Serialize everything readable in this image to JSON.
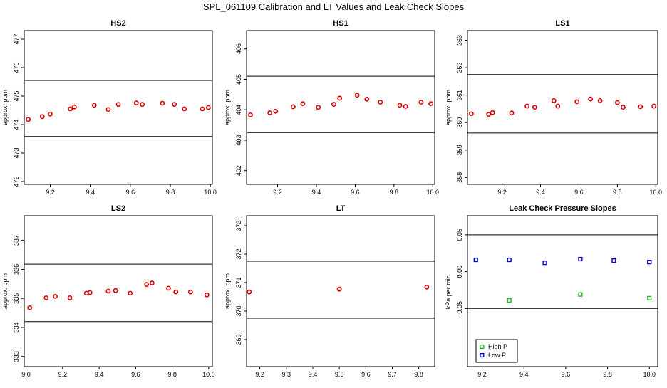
{
  "page_title": "SPL_061109  Calibration and LT Values and Leak Check Slopes",
  "chart_data": [
    {
      "type": "scatter",
      "title": "HS2",
      "ylabel": "approx. ppm",
      "xlim": [
        9.07,
        10.01
      ],
      "ylim": [
        471.9,
        477.3
      ],
      "x_ticks": [
        9.2,
        9.4,
        9.6,
        9.8,
        10.0
      ],
      "x_tick_labels": [
        "9.2",
        "9.4",
        "9.6",
        "9.8",
        "10.0"
      ],
      "y_ticks": [
        472,
        473,
        474,
        475,
        476,
        477
      ],
      "y_tick_labels": [
        "472",
        "473",
        "474",
        "475",
        "476",
        "477"
      ],
      "hlines": [
        475.55,
        473.58
      ],
      "series": [
        {
          "marker": "circle",
          "color": "#dd0000",
          "x": [
            9.09,
            9.16,
            9.2,
            9.3,
            9.32,
            9.42,
            9.49,
            9.54,
            9.63,
            9.66,
            9.76,
            9.82,
            9.87,
            9.96,
            9.99
          ],
          "y": [
            474.18,
            474.28,
            474.37,
            474.55,
            474.62,
            474.68,
            474.53,
            474.71,
            474.76,
            474.71,
            474.75,
            474.71,
            474.55,
            474.55,
            474.6
          ]
        }
      ]
    },
    {
      "type": "scatter",
      "title": "HS1",
      "ylabel": "approx. ppm",
      "xlim": [
        9.04,
        10.01
      ],
      "ylim": [
        401.55,
        406.6
      ],
      "x_ticks": [
        9.2,
        9.4,
        9.6,
        9.8,
        10.0
      ],
      "x_tick_labels": [
        "9.2",
        "9.4",
        "9.6",
        "9.8",
        "10.0"
      ],
      "y_ticks": [
        402,
        403,
        404,
        405,
        406
      ],
      "y_tick_labels": [
        "402",
        "403",
        "404",
        "405",
        "406"
      ],
      "hlines": [
        405.1,
        403.25
      ],
      "series": [
        {
          "marker": "circle",
          "color": "#dd0000",
          "x": [
            9.06,
            9.16,
            9.19,
            9.28,
            9.33,
            9.41,
            9.49,
            9.52,
            9.61,
            9.66,
            9.73,
            9.83,
            9.86,
            9.94,
            9.99
          ],
          "y": [
            403.83,
            403.9,
            403.95,
            404.1,
            404.2,
            404.08,
            404.18,
            404.38,
            404.48,
            404.35,
            404.25,
            404.15,
            404.11,
            404.25,
            404.2
          ]
        }
      ]
    },
    {
      "type": "scatter",
      "title": "LS1",
      "ylabel": "approx. ppm",
      "xlim": [
        9.02,
        10.01
      ],
      "ylim": [
        357.75,
        363.35
      ],
      "x_ticks": [
        9.2,
        9.4,
        9.6,
        9.8,
        10.0
      ],
      "x_tick_labels": [
        "9.2",
        "9.4",
        "9.6",
        "9.8",
        "10.0"
      ],
      "y_ticks": [
        358,
        359,
        360,
        361,
        362,
        363
      ],
      "y_tick_labels": [
        "358",
        "359",
        "360",
        "361",
        "362",
        "363"
      ],
      "hlines": [
        361.75,
        359.62
      ],
      "series": [
        {
          "marker": "circle",
          "color": "#dd0000",
          "x": [
            9.04,
            9.13,
            9.15,
            9.25,
            9.33,
            9.37,
            9.47,
            9.49,
            9.59,
            9.66,
            9.71,
            9.8,
            9.83,
            9.92,
            9.99
          ],
          "y": [
            360.32,
            360.3,
            360.36,
            360.35,
            360.6,
            360.56,
            360.8,
            360.6,
            360.76,
            360.86,
            360.8,
            360.73,
            360.56,
            360.58,
            360.6
          ]
        }
      ]
    },
    {
      "type": "scatter",
      "title": "LS2",
      "ylabel": "approx. ppm",
      "xlim": [
        8.99,
        10.02
      ],
      "ylim": [
        332.65,
        337.85
      ],
      "x_ticks": [
        9.0,
        9.2,
        9.4,
        9.6,
        9.8,
        10.0
      ],
      "x_tick_labels": [
        "9.0",
        "9.2",
        "9.4",
        "9.6",
        "9.8",
        "10.0"
      ],
      "y_ticks": [
        333,
        334,
        335,
        336,
        337
      ],
      "y_tick_labels": [
        "333",
        "334",
        "335",
        "336",
        "337"
      ],
      "hlines": [
        336.18,
        334.2
      ],
      "series": [
        {
          "marker": "circle",
          "color": "#dd0000",
          "x": [
            9.02,
            9.11,
            9.16,
            9.24,
            9.33,
            9.35,
            9.45,
            9.49,
            9.57,
            9.66,
            9.69,
            9.78,
            9.82,
            9.9,
            9.99
          ],
          "y": [
            334.68,
            335.02,
            335.07,
            335.02,
            335.18,
            335.2,
            335.25,
            335.27,
            335.18,
            335.48,
            335.53,
            335.35,
            335.22,
            335.22,
            335.12
          ]
        }
      ]
    },
    {
      "type": "scatter",
      "title": "LT",
      "ylabel": "approx. ppm",
      "xlim": [
        9.15,
        9.86
      ],
      "ylim": [
        368.05,
        373.35
      ],
      "x_ticks": [
        9.2,
        9.3,
        9.4,
        9.5,
        9.6,
        9.7,
        9.8
      ],
      "x_tick_labels": [
        "9.2",
        "9.3",
        "9.4",
        "9.5",
        "9.6",
        "9.7",
        "9.8"
      ],
      "y_ticks": [
        369,
        370,
        371,
        372,
        373
      ],
      "y_tick_labels": [
        "369",
        "370",
        "371",
        "372",
        "373"
      ],
      "hlines": [
        371.75,
        369.75
      ],
      "series": [
        {
          "marker": "circle",
          "color": "#dd0000",
          "x": [
            9.16,
            9.5,
            9.83
          ],
          "y": [
            370.67,
            370.77,
            370.84
          ]
        }
      ]
    },
    {
      "type": "scatter",
      "title": "Leak Check Pressure Slopes",
      "ylabel": "kPa per min.",
      "xlim": [
        9.13,
        10.04
      ],
      "ylim": [
        -0.129,
        0.076
      ],
      "x_ticks": [
        9.2,
        9.4,
        9.6,
        9.8,
        10.0
      ],
      "x_tick_labels": [
        "9.2",
        "9.4",
        "9.6",
        "9.8",
        "10.0"
      ],
      "y_ticks": [
        -0.05,
        0.0,
        0.05
      ],
      "y_tick_labels": [
        "-0.05",
        "0.00",
        "0.05"
      ],
      "hlines": [
        0.05,
        -0.05
      ],
      "legend_position": "bottom-left",
      "series": [
        {
          "name": "High P",
          "marker": "square",
          "color": "#22bb22",
          "x": [
            9.33,
            9.67,
            10.0
          ],
          "y": [
            -0.039,
            -0.031,
            -0.036
          ]
        },
        {
          "name": "Low P",
          "marker": "square",
          "color": "#0000cc",
          "x": [
            9.17,
            9.33,
            9.5,
            9.67,
            9.83,
            10.0
          ],
          "y": [
            0.016,
            0.016,
            0.012,
            0.017,
            0.015,
            0.013
          ]
        }
      ]
    }
  ]
}
